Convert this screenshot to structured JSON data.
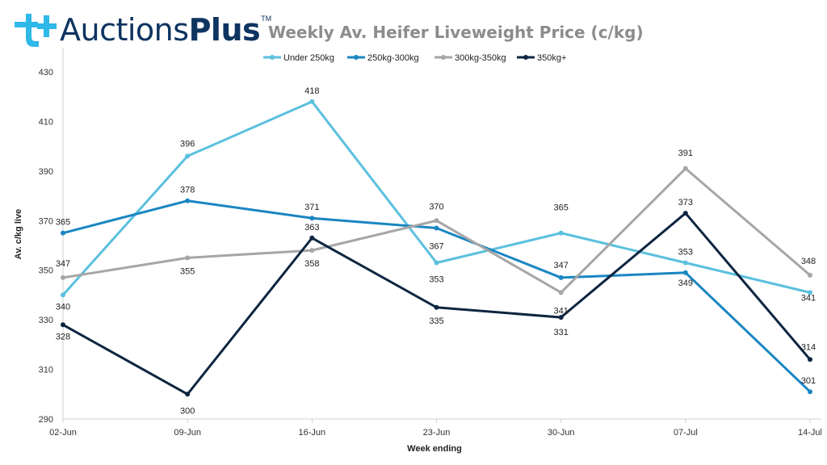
{
  "brand": {
    "name": "Auctions",
    "name_bold": "Plus",
    "trademark": "TM",
    "mark_color": "#2fb8e8",
    "text_color": "#0e3460"
  },
  "chart_data": {
    "type": "line",
    "title": "Weekly Av. Heifer Liveweight Price (c/kg)",
    "xlabel": "Week ending",
    "ylabel": "Av. c/kg live",
    "categories": [
      "02-Jun",
      "09-Jun",
      "16-Jun",
      "23-Jun",
      "30-Jun",
      "07-Jul",
      "14-Jul"
    ],
    "ylim": [
      290,
      430
    ],
    "yticks": [
      290,
      310,
      330,
      350,
      370,
      390,
      410,
      430
    ],
    "grid": false,
    "legend_position": "top",
    "series": [
      {
        "name": "Under 250kg",
        "color": "#5bc0de",
        "values": [
          340,
          396,
          418,
          353,
          365,
          353,
          341
        ],
        "labels": [
          "340",
          "396",
          "418",
          "353",
          "365",
          "353",
          "341"
        ]
      },
      {
        "name": "250kg-300kg",
        "color": "#1a86c2",
        "values": [
          365,
          378,
          371,
          367,
          347,
          349,
          301
        ],
        "labels": [
          "365",
          "378",
          "371",
          "367",
          "347",
          "349",
          "301"
        ]
      },
      {
        "name": "300kg-350kg",
        "color": "#a6a6a6",
        "values": [
          347,
          355,
          358,
          370,
          341,
          391,
          348
        ],
        "labels": [
          "347",
          "355",
          "358",
          "370",
          "341",
          "391",
          "348"
        ]
      },
      {
        "name": "350kg+",
        "color": "#0d2540",
        "values": [
          328,
          300,
          363,
          335,
          331,
          373,
          314
        ],
        "labels": [
          "328",
          "300",
          "363",
          "335",
          "331",
          "373",
          "314"
        ]
      }
    ]
  }
}
